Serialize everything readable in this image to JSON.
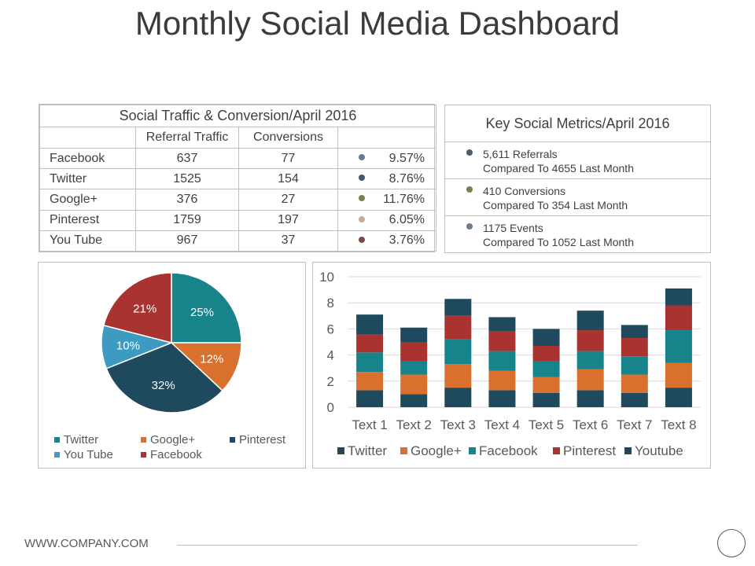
{
  "title": "Monthly Social Media Dashboard",
  "traffic_table": {
    "caption": "Social Traffic & Conversion/April 2016",
    "headers": [
      "",
      "Referral Traffic",
      "Conversions",
      ""
    ],
    "rows": [
      {
        "name": "Facebook",
        "referral": "637",
        "conversions": "77",
        "rate": "9.57%",
        "dot": "#6b7b8c"
      },
      {
        "name": "Twitter",
        "referral": "1525",
        "conversions": "154",
        "rate": "8.76%",
        "dot": "#3d5a73"
      },
      {
        "name": "Google+",
        "referral": "376",
        "conversions": "27",
        "rate": "11.76%",
        "dot": "#7a7f52"
      },
      {
        "name": "Pinterest",
        "referral": "1759",
        "conversions": "197",
        "rate": "6.05%",
        "dot": "#c9a99a"
      },
      {
        "name": "You Tube",
        "referral": "967",
        "conversions": "37",
        "rate": "3.76%",
        "dot": "#7a4a4a"
      }
    ]
  },
  "metrics": {
    "title": "Key Social Metrics/April 2016",
    "items": [
      {
        "line1": "5,611 Referrals",
        "line2": "Compared To 4655 Last Month",
        "dot": "#4d5b6b"
      },
      {
        "line1": "410 Conversions",
        "line2": "Compared To 354 Last Month",
        "dot": "#7a7f52"
      },
      {
        "line1": "1175 Events",
        "line2": "Compared To 1052 Last Month",
        "dot": "#6b7b8c"
      }
    ]
  },
  "chart_data": [
    {
      "type": "pie",
      "slices": [
        {
          "name": "Twitter",
          "value": 25,
          "label": "25%",
          "color": "#17848c"
        },
        {
          "name": "Google+",
          "value": 12,
          "label": "12%",
          "color": "#d9702e"
        },
        {
          "name": "Pinterest",
          "value": 32,
          "label": "32%",
          "color": "#1f4a5e"
        },
        {
          "name": "You Tube",
          "value": 10,
          "label": "10%",
          "color": "#3d9bc1"
        },
        {
          "name": "Facebook",
          "value": 21,
          "label": "21%",
          "color": "#a93330"
        }
      ],
      "legend": [
        "Twitter",
        "Google+",
        "Pinterest",
        "You Tube",
        "Facebook"
      ],
      "legend_position": "bottom"
    },
    {
      "type": "bar",
      "stacked": true,
      "categories": [
        "Text 1",
        "Text 2",
        "Text 3",
        "Text 4",
        "Text 5",
        "Text 6",
        "Text 7",
        "Text 8"
      ],
      "series": [
        {
          "name": "Twitter",
          "color": "#1f4a5e",
          "values": [
            1.3,
            1.0,
            1.5,
            1.3,
            1.1,
            1.3,
            1.1,
            1.5
          ]
        },
        {
          "name": "Google+",
          "color": "#d9702e",
          "values": [
            1.4,
            1.5,
            1.8,
            1.5,
            1.2,
            1.6,
            1.4,
            1.9
          ]
        },
        {
          "name": "Facebook",
          "color": "#17848c",
          "values": [
            1.5,
            1.0,
            1.9,
            1.5,
            1.2,
            1.4,
            1.4,
            2.5
          ]
        },
        {
          "name": "Pinterest",
          "color": "#a93330",
          "values": [
            1.4,
            1.5,
            1.8,
            1.5,
            1.2,
            1.6,
            1.4,
            1.9
          ]
        },
        {
          "name": "Youtube",
          "color": "#1f4a5e",
          "values": [
            1.5,
            1.1,
            1.3,
            1.1,
            1.3,
            1.5,
            1.0,
            1.3
          ]
        }
      ],
      "ylim": [
        0,
        10
      ],
      "yticks": [
        "0",
        "2",
        "4",
        "6",
        "8",
        "10"
      ],
      "grid": true,
      "legend_position": "bottom"
    }
  ],
  "footer": {
    "company": "WWW.COMPANY.COM"
  }
}
